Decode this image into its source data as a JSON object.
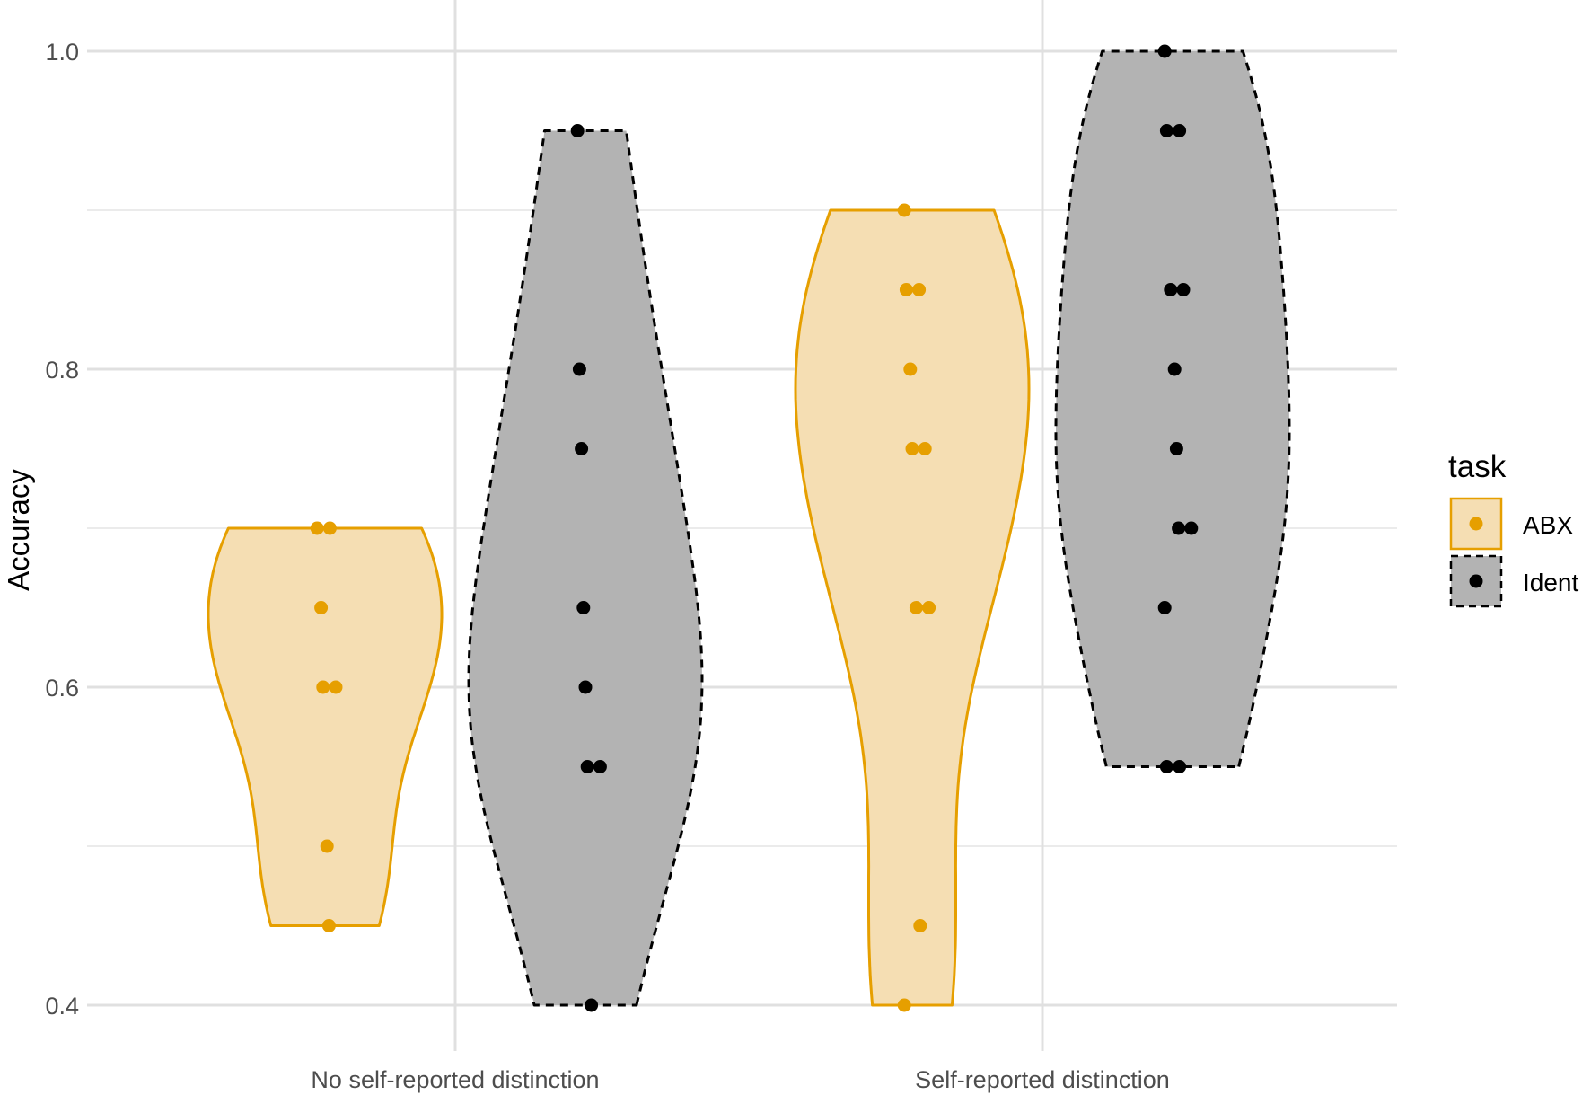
{
  "chart_data": {
    "type": "violin",
    "title": "",
    "xlabel": "",
    "ylabel": "Accuracy",
    "categories": [
      "No self-reported distinction",
      "Self-reported distinction"
    ],
    "ylim": [
      0.385,
      1.03
    ],
    "y_ticks": [
      0.4,
      0.6,
      0.8,
      1.0
    ],
    "y_tick_labels": [
      "0.4",
      "0.6",
      "0.8",
      "1.0"
    ],
    "grid": true,
    "legend": {
      "title": "task",
      "placement": "right",
      "entries": [
        "ABX",
        "Ident"
      ]
    },
    "series": [
      {
        "name": "ABX",
        "color": "#E69F00",
        "fill": "#F5DEB3",
        "line_style": "solid",
        "groups": [
          {
            "category": "No self-reported distinction",
            "min": 0.45,
            "max": 0.7,
            "points": [
              0.7,
              0.7,
              0.65,
              0.6,
              0.6,
              0.5,
              0.45
            ]
          },
          {
            "category": "Self-reported distinction",
            "min": 0.4,
            "max": 0.9,
            "points": [
              0.9,
              0.85,
              0.85,
              0.8,
              0.75,
              0.75,
              0.65,
              0.65,
              0.45,
              0.4
            ]
          }
        ]
      },
      {
        "name": "Ident",
        "color": "#000000",
        "fill": "#B3B3B3",
        "line_style": "dashed",
        "groups": [
          {
            "category": "No self-reported distinction",
            "min": 0.4,
            "max": 0.95,
            "points": [
              0.95,
              0.8,
              0.75,
              0.65,
              0.6,
              0.55,
              0.55,
              0.4
            ]
          },
          {
            "category": "Self-reported distinction",
            "min": 0.55,
            "max": 1.0,
            "points": [
              1.0,
              0.95,
              0.95,
              0.85,
              0.85,
              0.8,
              0.75,
              0.7,
              0.7,
              0.65,
              0.55,
              0.55
            ]
          }
        ]
      }
    ]
  }
}
